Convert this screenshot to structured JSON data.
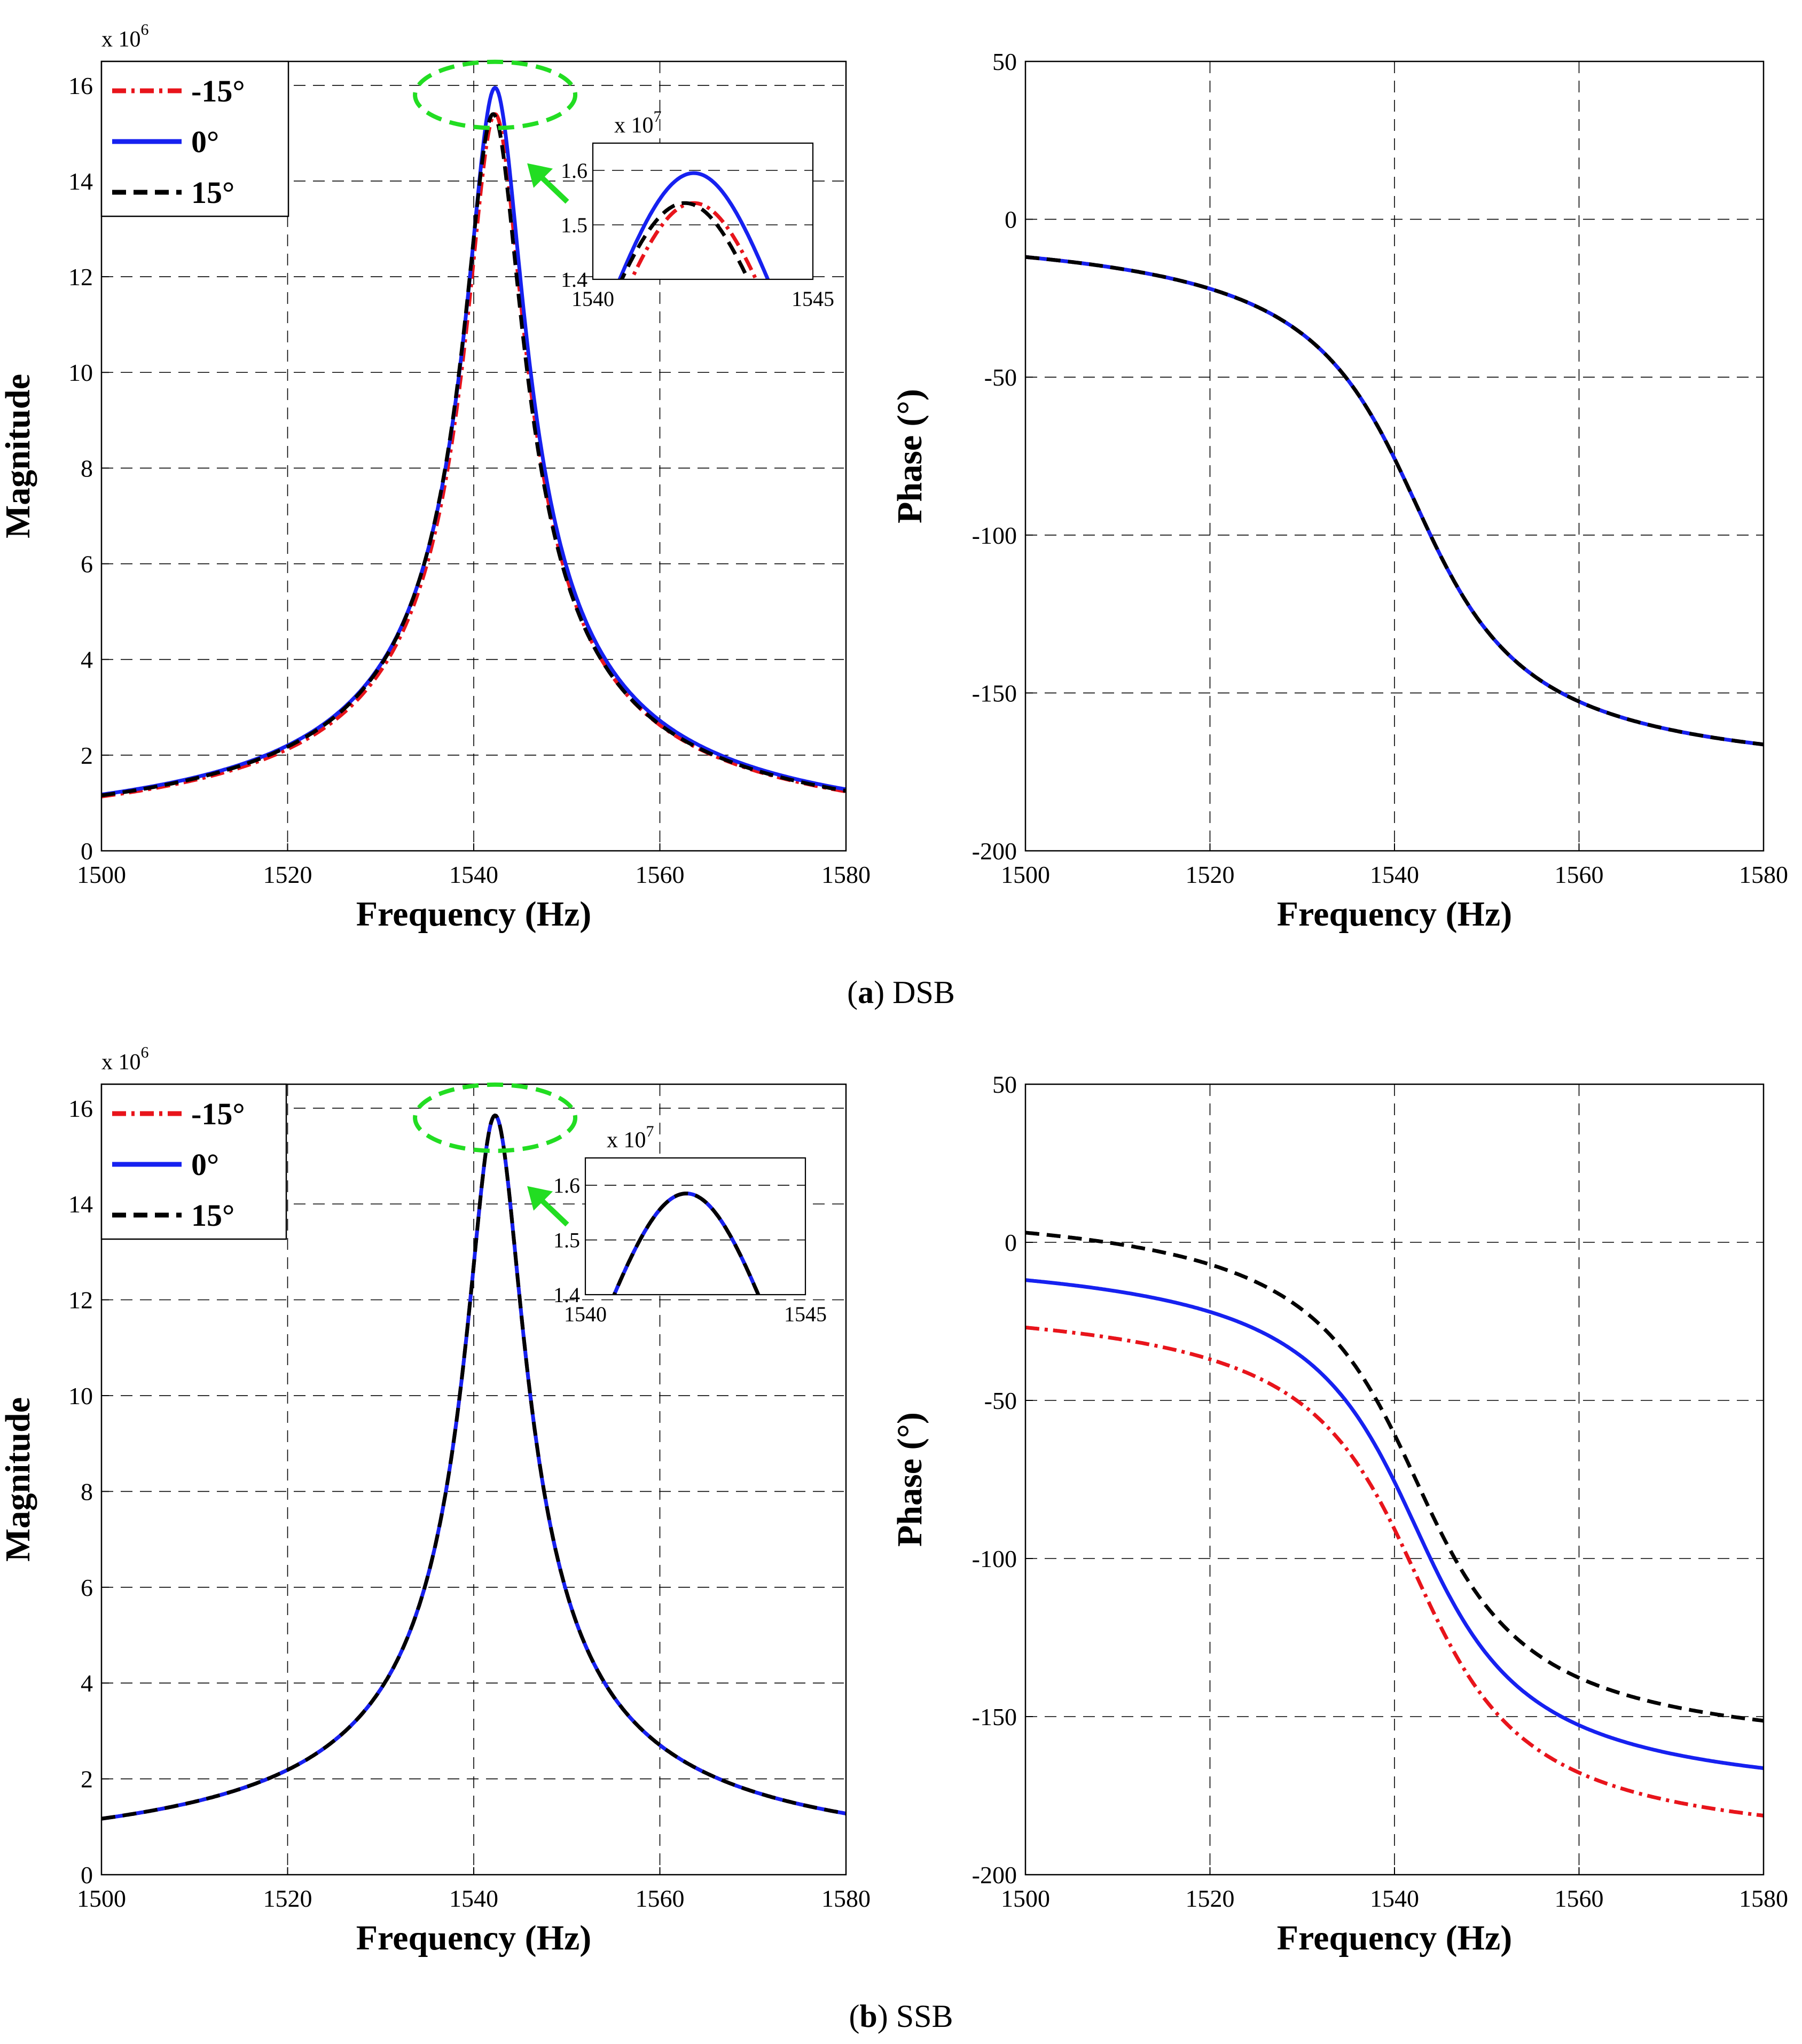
{
  "figure": {
    "captions": [
      {
        "letter": "a",
        "text": "DSB"
      },
      {
        "letter": "b",
        "text": "SSB"
      }
    ],
    "series_styles": [
      {
        "name": "-15°",
        "color": "#e8141b",
        "dash": "dashdot"
      },
      {
        "name": "0°",
        "color": "#1621f0",
        "dash": "solid"
      },
      {
        "name": "15°",
        "color": "#000000",
        "dash": "dashed"
      }
    ],
    "zoom_marker_color": "#22dd22"
  },
  "chart_data": [
    {
      "id": "dsb-magnitude",
      "type": "line",
      "panel": "a",
      "title": "",
      "xlabel": "Frequency (Hz)",
      "ylabel": "Magnitude",
      "xlim": [
        1500,
        1580
      ],
      "ylim": [
        0,
        16.5
      ],
      "xticks": [
        "1500",
        "1520",
        "1540",
        "1560",
        "1580"
      ],
      "yticks": [
        "0",
        "2",
        "4",
        "6",
        "8",
        "10",
        "12",
        "14",
        "16"
      ],
      "multiplier": {
        "base": "x 10",
        "exp": "6"
      },
      "grid": true,
      "legend": {
        "placement": "top-left",
        "entries": [
          "-15°",
          "0°",
          "15°"
        ]
      },
      "model": "resonance",
      "series": [
        {
          "name": "-15°",
          "f0": 1542.3,
          "peak": 15.4,
          "base": 0,
          "width_scale": 1.0
        },
        {
          "name": "0°",
          "f0": 1542.3,
          "peak": 15.95,
          "base": 0,
          "width_scale": 1.0
        },
        {
          "name": "15°",
          "f0": 1542.1,
          "peak": 15.4,
          "base": 0,
          "width_scale": 0.985
        }
      ],
      "zoom_marker": {
        "x": 1542.3,
        "y": 15.8
      },
      "inset": {
        "xlim": [
          1540,
          1545
        ],
        "ylim": [
          1.4,
          1.65
        ],
        "xticks": [
          "1540",
          "1545"
        ],
        "yticks": [
          "1.4",
          "1.5",
          "1.6"
        ],
        "multiplier": {
          "base": "x 10",
          "exp": "7"
        }
      }
    },
    {
      "id": "dsb-phase",
      "type": "line",
      "panel": "a",
      "title": "",
      "xlabel": "Frequency (Hz)",
      "ylabel": "Phase (°)",
      "xlim": [
        1500,
        1580
      ],
      "ylim": [
        -200,
        50
      ],
      "xticks": [
        "1500",
        "1520",
        "1540",
        "1560",
        "1580"
      ],
      "yticks": [
        "-200",
        "-150",
        "-100",
        "-50",
        "0",
        "50"
      ],
      "grid": true,
      "model": "phase",
      "series": [
        {
          "name": "-15°",
          "f0": 1542.3,
          "offset": 0,
          "start": -171,
          "end": 0
        },
        {
          "name": "0°",
          "f0": 1542.3,
          "offset": 0,
          "start": -171,
          "end": 0
        },
        {
          "name": "15°",
          "f0": 1542.3,
          "offset": 0,
          "start": -171,
          "end": 0
        }
      ]
    },
    {
      "id": "ssb-magnitude",
      "type": "line",
      "panel": "b",
      "title": "",
      "xlabel": "Frequency (Hz)",
      "ylabel": "Magnitude",
      "xlim": [
        1500,
        1580
      ],
      "ylim": [
        0,
        16.5
      ],
      "xticks": [
        "1500",
        "1520",
        "1540",
        "1560",
        "1580"
      ],
      "yticks": [
        "0",
        "2",
        "4",
        "6",
        "8",
        "10",
        "12",
        "14",
        "16"
      ],
      "multiplier": {
        "base": "x 10",
        "exp": "6"
      },
      "grid": true,
      "legend": {
        "placement": "top-left",
        "entries": [
          "-15°",
          "0°",
          "15°"
        ]
      },
      "model": "resonance",
      "series": [
        {
          "name": "-15°",
          "f0": 1542.3,
          "peak": 15.85,
          "base": 0,
          "width_scale": 1.0
        },
        {
          "name": "0°",
          "f0": 1542.3,
          "peak": 15.85,
          "base": 0,
          "width_scale": 1.0
        },
        {
          "name": "15°",
          "f0": 1542.3,
          "peak": 15.85,
          "base": 0,
          "width_scale": 1.0
        }
      ],
      "zoom_marker": {
        "x": 1542.3,
        "y": 15.8
      },
      "inset": {
        "xlim": [
          1540,
          1545
        ],
        "ylim": [
          1.4,
          1.65
        ],
        "xticks": [
          "1540",
          "1545"
        ],
        "yticks": [
          "1.4",
          "1.5",
          "1.6"
        ],
        "multiplier": {
          "base": "x 10",
          "exp": "7"
        }
      }
    },
    {
      "id": "ssb-phase",
      "type": "line",
      "panel": "b",
      "title": "",
      "xlabel": "Frequency (Hz)",
      "ylabel": "Phase (°)",
      "xlim": [
        1500,
        1580
      ],
      "ylim": [
        -200,
        50
      ],
      "xticks": [
        "1500",
        "1520",
        "1540",
        "1560",
        "1580"
      ],
      "yticks": [
        "-200",
        "-150",
        "-100",
        "-50",
        "0",
        "50"
      ],
      "grid": true,
      "model": "phase",
      "series": [
        {
          "name": "-15°",
          "f0": 1542.3,
          "offset": -15,
          "start": -186,
          "end": -15
        },
        {
          "name": "0°",
          "f0": 1542.3,
          "offset": 0,
          "start": -171,
          "end": 0
        },
        {
          "name": "15°",
          "f0": 1542.3,
          "offset": 15,
          "start": -156,
          "end": 15
        }
      ]
    }
  ]
}
